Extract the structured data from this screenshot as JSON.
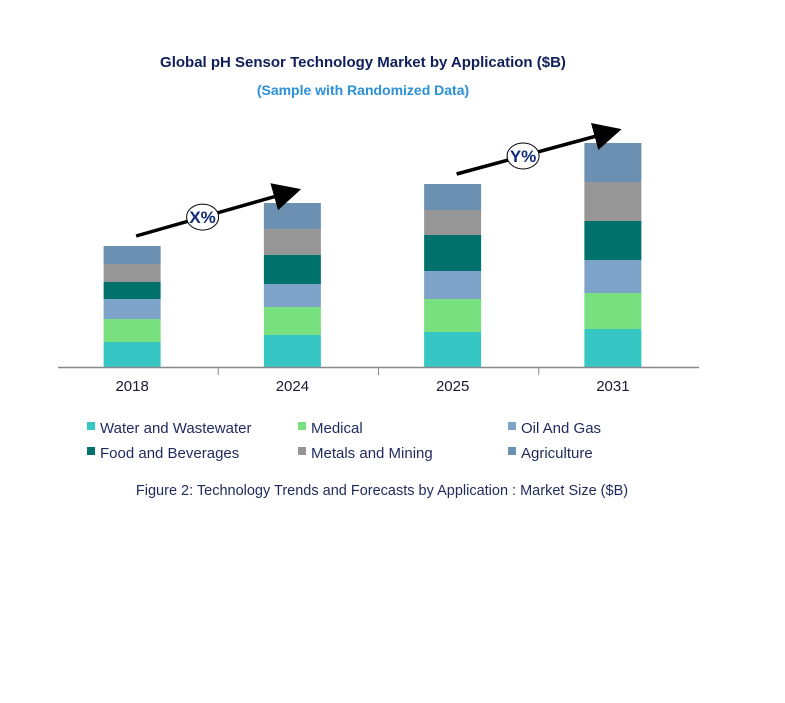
{
  "chart_data": {
    "type": "bar",
    "stacked": true,
    "title": "Global pH Sensor Technology Market by Application ($B)",
    "subtitle": "(Sample with Randomized Data)",
    "caption": "Figure 2: Technology  Trends  and Forecasts by Application : Market Size ($B)",
    "xlabel": "",
    "ylabel": "",
    "ylim": [
      0,
      23
    ],
    "grid": false,
    "legend_position": "bottom",
    "categories": [
      "2018",
      "2024",
      "2025",
      "2031"
    ],
    "series": [
      {
        "name": "Water and Wastewater",
        "color": "#36c6c4",
        "values": [
          2.5,
          3.2,
          3.5,
          3.8
        ]
      },
      {
        "name": "Medical",
        "color": "#78e07e",
        "values": [
          2.3,
          2.8,
          3.3,
          3.6
        ]
      },
      {
        "name": "Oil And Gas",
        "color": "#7ea3c8",
        "values": [
          2.0,
          2.3,
          2.8,
          3.3
        ]
      },
      {
        "name": "Food and Beverages",
        "color": "#00716b",
        "values": [
          1.7,
          2.9,
          3.6,
          3.9
        ]
      },
      {
        "name": "Metals and Mining",
        "color": "#969696",
        "values": [
          1.8,
          2.6,
          2.5,
          3.9
        ]
      },
      {
        "name": "Agriculture",
        "color": "#6b90b2",
        "values": [
          1.8,
          2.6,
          2.6,
          3.9
        ]
      }
    ],
    "annotations": [
      {
        "text": "X%",
        "from_category": "2018",
        "to_category": "2024"
      },
      {
        "text": "Y%",
        "from_category": "2025",
        "to_category": "2031"
      }
    ]
  }
}
